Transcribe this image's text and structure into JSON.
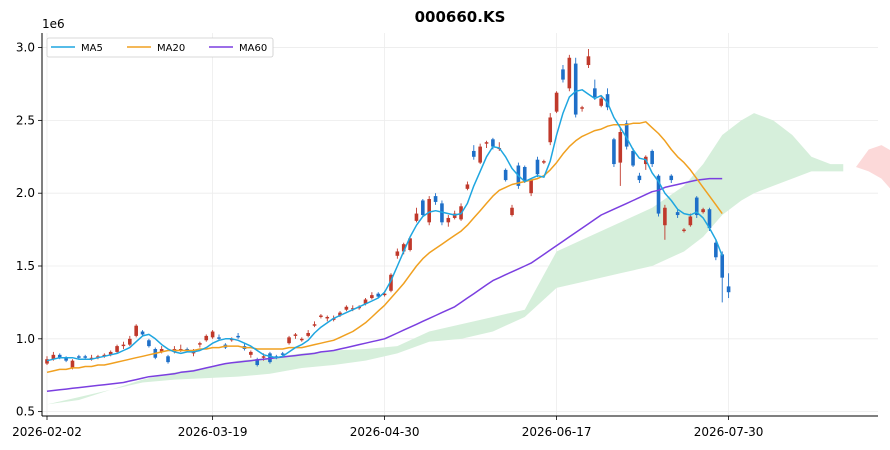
{
  "chart_data": {
    "type": "candlestick",
    "title": "000660.KS",
    "y_scale_label": "1e6",
    "ylim": [
      0.47,
      3.1
    ],
    "x_ticks": [
      "2026-02-02",
      "2026-03-19",
      "2026-04-30",
      "2026-06-17",
      "2026-07-30"
    ],
    "y_ticks": [
      "0.5",
      "1.0",
      "1.5",
      "2.0",
      "2.5",
      "3.0"
    ],
    "legend": [
      {
        "name": "MA5",
        "color": "#1fa6e0"
      },
      {
        "name": "MA20",
        "color": "#f0a020"
      },
      {
        "name": "MA60",
        "color": "#7b3fe0"
      }
    ],
    "colors": {
      "up": "#c0392b",
      "down": "#1e6fc8",
      "cloud_bull": "#d6efdb",
      "cloud_bear": "#fcd9d9"
    },
    "candles": [
      {
        "o": 0.83,
        "h": 0.88,
        "l": 0.82,
        "c": 0.86
      },
      {
        "o": 0.86,
        "h": 0.91,
        "l": 0.85,
        "c": 0.89
      },
      {
        "o": 0.89,
        "h": 0.9,
        "l": 0.86,
        "c": 0.87
      },
      {
        "o": 0.87,
        "h": 0.88,
        "l": 0.84,
        "c": 0.85
      },
      {
        "o": 0.8,
        "h": 0.86,
        "l": 0.79,
        "c": 0.85
      },
      {
        "o": 0.88,
        "h": 0.89,
        "l": 0.86,
        "c": 0.87
      },
      {
        "o": 0.88,
        "h": 0.89,
        "l": 0.86,
        "c": 0.87
      },
      {
        "o": 0.86,
        "h": 0.89,
        "l": 0.85,
        "c": 0.87
      },
      {
        "o": 0.87,
        "h": 0.89,
        "l": 0.86,
        "c": 0.88
      },
      {
        "o": 0.88,
        "h": 0.9,
        "l": 0.87,
        "c": 0.89
      },
      {
        "o": 0.89,
        "h": 0.92,
        "l": 0.88,
        "c": 0.91
      },
      {
        "o": 0.91,
        "h": 0.96,
        "l": 0.9,
        "c": 0.95
      },
      {
        "o": 0.95,
        "h": 0.98,
        "l": 0.93,
        "c": 0.96
      },
      {
        "o": 0.96,
        "h": 1.02,
        "l": 0.95,
        "c": 1.0
      },
      {
        "o": 1.02,
        "h": 1.1,
        "l": 1.01,
        "c": 1.09
      },
      {
        "o": 1.05,
        "h": 1.06,
        "l": 1.02,
        "c": 1.03
      },
      {
        "o": 0.99,
        "h": 1.0,
        "l": 0.94,
        "c": 0.95
      },
      {
        "o": 0.93,
        "h": 0.94,
        "l": 0.86,
        "c": 0.87
      },
      {
        "o": 0.91,
        "h": 0.95,
        "l": 0.9,
        "c": 0.93
      },
      {
        "o": 0.88,
        "h": 0.89,
        "l": 0.83,
        "c": 0.84
      },
      {
        "o": 0.91,
        "h": 0.95,
        "l": 0.9,
        "c": 0.93
      },
      {
        "o": 0.92,
        "h": 0.96,
        "l": 0.91,
        "c": 0.93
      },
      {
        "o": 0.93,
        "h": 0.94,
        "l": 0.91,
        "c": 0.92
      },
      {
        "o": 0.9,
        "h": 0.93,
        "l": 0.88,
        "c": 0.91
      },
      {
        "o": 0.96,
        "h": 0.98,
        "l": 0.94,
        "c": 0.97
      },
      {
        "o": 0.99,
        "h": 1.03,
        "l": 0.98,
        "c": 1.02
      },
      {
        "o": 1.01,
        "h": 1.06,
        "l": 1.0,
        "c": 1.05
      },
      {
        "o": 1.01,
        "h": 1.03,
        "l": 0.99,
        "c": 1.0
      },
      {
        "o": 0.96,
        "h": 0.97,
        "l": 0.93,
        "c": 0.94
      },
      {
        "o": 0.99,
        "h": 1.01,
        "l": 0.98,
        "c": 1.0
      },
      {
        "o": 1.02,
        "h": 1.04,
        "l": 1.0,
        "c": 1.01
      },
      {
        "o": 0.95,
        "h": 0.97,
        "l": 0.92,
        "c": 0.93
      },
      {
        "o": 0.89,
        "h": 0.92,
        "l": 0.87,
        "c": 0.91
      },
      {
        "o": 0.86,
        "h": 0.87,
        "l": 0.81,
        "c": 0.82
      },
      {
        "o": 0.87,
        "h": 0.9,
        "l": 0.85,
        "c": 0.88
      },
      {
        "o": 0.9,
        "h": 0.91,
        "l": 0.83,
        "c": 0.84
      },
      {
        "o": 0.88,
        "h": 0.89,
        "l": 0.86,
        "c": 0.87
      },
      {
        "o": 0.9,
        "h": 0.91,
        "l": 0.88,
        "c": 0.89
      },
      {
        "o": 0.97,
        "h": 1.02,
        "l": 0.96,
        "c": 1.01
      },
      {
        "o": 1.02,
        "h": 1.04,
        "l": 1.0,
        "c": 1.03
      },
      {
        "o": 0.99,
        "h": 1.01,
        "l": 0.98,
        "c": 1.0
      },
      {
        "o": 1.02,
        "h": 1.06,
        "l": 1.01,
        "c": 1.04
      },
      {
        "o": 1.09,
        "h": 1.12,
        "l": 1.08,
        "c": 1.1
      },
      {
        "o": 1.15,
        "h": 1.17,
        "l": 1.14,
        "c": 1.16
      },
      {
        "o": 1.14,
        "h": 1.16,
        "l": 1.12,
        "c": 1.15
      },
      {
        "o": 1.13,
        "h": 1.16,
        "l": 1.12,
        "c": 1.14
      },
      {
        "o": 1.16,
        "h": 1.19,
        "l": 1.15,
        "c": 1.18
      },
      {
        "o": 1.2,
        "h": 1.23,
        "l": 1.19,
        "c": 1.22
      },
      {
        "o": 1.21,
        "h": 1.23,
        "l": 1.19,
        "c": 1.21
      },
      {
        "o": 1.21,
        "h": 1.23,
        "l": 1.2,
        "c": 1.22
      },
      {
        "o": 1.24,
        "h": 1.28,
        "l": 1.23,
        "c": 1.27
      },
      {
        "o": 1.28,
        "h": 1.32,
        "l": 1.27,
        "c": 1.3
      },
      {
        "o": 1.31,
        "h": 1.32,
        "l": 1.28,
        "c": 1.29
      },
      {
        "o": 1.3,
        "h": 1.33,
        "l": 1.29,
        "c": 1.31
      },
      {
        "o": 1.33,
        "h": 1.45,
        "l": 1.32,
        "c": 1.44
      },
      {
        "o": 1.57,
        "h": 1.62,
        "l": 1.55,
        "c": 1.6
      },
      {
        "o": 1.6,
        "h": 1.66,
        "l": 1.58,
        "c": 1.65
      },
      {
        "o": 1.61,
        "h": 1.7,
        "l": 1.6,
        "c": 1.69
      },
      {
        "o": 1.81,
        "h": 1.9,
        "l": 1.8,
        "c": 1.86
      },
      {
        "o": 1.95,
        "h": 1.96,
        "l": 1.84,
        "c": 1.85
      },
      {
        "o": 1.8,
        "h": 1.98,
        "l": 1.78,
        "c": 1.96
      },
      {
        "o": 1.98,
        "h": 2.0,
        "l": 1.92,
        "c": 1.94
      },
      {
        "o": 1.93,
        "h": 1.95,
        "l": 1.78,
        "c": 1.8
      },
      {
        "o": 1.8,
        "h": 1.85,
        "l": 1.77,
        "c": 1.83
      },
      {
        "o": 1.83,
        "h": 1.88,
        "l": 1.82,
        "c": 1.86
      },
      {
        "o": 1.82,
        "h": 1.93,
        "l": 1.81,
        "c": 1.91
      },
      {
        "o": 2.03,
        "h": 2.08,
        "l": 2.02,
        "c": 2.06
      },
      {
        "o": 2.29,
        "h": 2.33,
        "l": 2.23,
        "c": 2.25
      },
      {
        "o": 2.21,
        "h": 2.34,
        "l": 2.2,
        "c": 2.32
      },
      {
        "o": 2.34,
        "h": 2.36,
        "l": 2.31,
        "c": 2.35
      },
      {
        "o": 2.37,
        "h": 2.38,
        "l": 2.3,
        "c": 2.32
      },
      {
        "o": 2.31,
        "h": 2.35,
        "l": 2.29,
        "c": 2.31
      },
      {
        "o": 2.16,
        "h": 2.17,
        "l": 2.08,
        "c": 2.09
      },
      {
        "o": 1.85,
        "h": 1.92,
        "l": 1.84,
        "c": 1.9
      },
      {
        "o": 2.19,
        "h": 2.21,
        "l": 2.03,
        "c": 2.05
      },
      {
        "o": 2.18,
        "h": 2.19,
        "l": 2.07,
        "c": 2.08
      },
      {
        "o": 2.0,
        "h": 2.1,
        "l": 1.98,
        "c": 2.09
      },
      {
        "o": 2.23,
        "h": 2.25,
        "l": 2.11,
        "c": 2.13
      },
      {
        "o": 2.21,
        "h": 2.23,
        "l": 2.2,
        "c": 2.22
      },
      {
        "o": 2.35,
        "h": 2.55,
        "l": 2.33,
        "c": 2.52
      },
      {
        "o": 2.56,
        "h": 2.7,
        "l": 2.55,
        "c": 2.69
      },
      {
        "o": 2.85,
        "h": 2.88,
        "l": 2.76,
        "c": 2.78
      },
      {
        "o": 2.72,
        "h": 2.95,
        "l": 2.7,
        "c": 2.93
      },
      {
        "o": 2.89,
        "h": 2.93,
        "l": 2.52,
        "c": 2.54
      },
      {
        "o": 2.58,
        "h": 2.6,
        "l": 2.56,
        "c": 2.59
      },
      {
        "o": 2.88,
        "h": 2.99,
        "l": 2.86,
        "c": 2.94
      },
      {
        "o": 2.72,
        "h": 2.78,
        "l": 2.64,
        "c": 2.66
      },
      {
        "o": 2.6,
        "h": 2.67,
        "l": 2.59,
        "c": 2.65
      },
      {
        "o": 2.68,
        "h": 2.72,
        "l": 2.57,
        "c": 2.59
      },
      {
        "o": 2.37,
        "h": 2.38,
        "l": 2.18,
        "c": 2.2
      },
      {
        "o": 2.21,
        "h": 2.45,
        "l": 2.05,
        "c": 2.42
      },
      {
        "o": 2.48,
        "h": 2.5,
        "l": 2.3,
        "c": 2.32
      },
      {
        "o": 2.29,
        "h": 2.31,
        "l": 2.18,
        "c": 2.19
      },
      {
        "o": 2.12,
        "h": 2.14,
        "l": 2.07,
        "c": 2.09
      },
      {
        "o": 2.2,
        "h": 2.26,
        "l": 2.16,
        "c": 2.25
      },
      {
        "o": 2.29,
        "h": 2.3,
        "l": 2.18,
        "c": 2.2
      },
      {
        "o": 2.12,
        "h": 2.13,
        "l": 1.84,
        "c": 1.86
      },
      {
        "o": 1.78,
        "h": 1.92,
        "l": 1.68,
        "c": 1.9
      },
      {
        "o": 2.12,
        "h": 2.13,
        "l": 2.07,
        "c": 2.09
      },
      {
        "o": 1.87,
        "h": 1.89,
        "l": 1.83,
        "c": 1.85
      },
      {
        "o": 1.74,
        "h": 1.76,
        "l": 1.73,
        "c": 1.75
      },
      {
        "o": 1.78,
        "h": 1.86,
        "l": 1.77,
        "c": 1.84
      },
      {
        "o": 1.97,
        "h": 1.98,
        "l": 1.83,
        "c": 1.85
      },
      {
        "o": 1.87,
        "h": 1.9,
        "l": 1.86,
        "c": 1.89
      },
      {
        "o": 1.89,
        "h": 1.9,
        "l": 1.74,
        "c": 1.76
      },
      {
        "o": 1.66,
        "h": 1.68,
        "l": 1.54,
        "c": 1.56
      },
      {
        "o": 1.58,
        "h": 1.6,
        "l": 1.25,
        "c": 1.42
      },
      {
        "o": 1.36,
        "h": 1.45,
        "l": 1.28,
        "c": 1.32
      }
    ],
    "ma5": [
      0.85,
      0.86,
      0.87,
      0.87,
      0.87,
      0.86,
      0.86,
      0.86,
      0.87,
      0.88,
      0.89,
      0.9,
      0.92,
      0.94,
      0.98,
      1.02,
      1.03,
      1.0,
      0.96,
      0.93,
      0.91,
      0.9,
      0.91,
      0.91,
      0.92,
      0.94,
      0.97,
      0.99,
      1.0,
      1.0,
      0.99,
      0.97,
      0.95,
      0.92,
      0.89,
      0.88,
      0.87,
      0.88,
      0.91,
      0.94,
      0.96,
      0.99,
      1.04,
      1.08,
      1.11,
      1.14,
      1.16,
      1.18,
      1.2,
      1.22,
      1.24,
      1.26,
      1.28,
      1.32,
      1.4,
      1.5,
      1.6,
      1.7,
      1.78,
      1.84,
      1.87,
      1.88,
      1.87,
      1.86,
      1.85,
      1.86,
      1.93,
      2.05,
      2.15,
      2.25,
      2.32,
      2.31,
      2.25,
      2.17,
      2.12,
      2.08,
      2.1,
      2.12,
      2.11,
      2.22,
      2.4,
      2.55,
      2.66,
      2.7,
      2.71,
      2.68,
      2.65,
      2.67,
      2.62,
      2.52,
      2.45,
      2.38,
      2.3,
      2.24,
      2.23,
      2.14,
      2.08,
      2.0,
      1.95,
      1.89,
      1.86,
      1.85,
      1.87,
      1.83,
      1.76,
      1.68,
      1.57
    ],
    "ma20": [
      0.77,
      0.78,
      0.79,
      0.79,
      0.8,
      0.8,
      0.81,
      0.81,
      0.82,
      0.82,
      0.83,
      0.84,
      0.85,
      0.86,
      0.87,
      0.88,
      0.89,
      0.9,
      0.91,
      0.92,
      0.92,
      0.92,
      0.92,
      0.92,
      0.93,
      0.93,
      0.94,
      0.94,
      0.95,
      0.95,
      0.95,
      0.94,
      0.94,
      0.93,
      0.93,
      0.93,
      0.93,
      0.93,
      0.94,
      0.94,
      0.94,
      0.95,
      0.96,
      0.97,
      0.98,
      0.99,
      1.01,
      1.03,
      1.05,
      1.08,
      1.11,
      1.15,
      1.19,
      1.23,
      1.28,
      1.33,
      1.38,
      1.44,
      1.5,
      1.55,
      1.59,
      1.62,
      1.65,
      1.68,
      1.71,
      1.74,
      1.78,
      1.83,
      1.88,
      1.93,
      1.98,
      2.02,
      2.04,
      2.06,
      2.07,
      2.08,
      2.09,
      2.1,
      2.12,
      2.16,
      2.21,
      2.27,
      2.32,
      2.36,
      2.39,
      2.41,
      2.43,
      2.44,
      2.46,
      2.47,
      2.47,
      2.47,
      2.48,
      2.48,
      2.49,
      2.45,
      2.41,
      2.36,
      2.3,
      2.25,
      2.21,
      2.16,
      2.1,
      2.04,
      1.98,
      1.92,
      1.86
    ],
    "ma60": [
      0.64,
      0.645,
      0.65,
      0.655,
      0.66,
      0.665,
      0.67,
      0.675,
      0.68,
      0.685,
      0.69,
      0.695,
      0.7,
      0.71,
      0.72,
      0.73,
      0.74,
      0.745,
      0.75,
      0.755,
      0.76,
      0.77,
      0.775,
      0.78,
      0.79,
      0.8,
      0.81,
      0.82,
      0.83,
      0.835,
      0.84,
      0.845,
      0.85,
      0.855,
      0.86,
      0.865,
      0.87,
      0.875,
      0.88,
      0.885,
      0.89,
      0.895,
      0.9,
      0.91,
      0.915,
      0.92,
      0.93,
      0.94,
      0.95,
      0.96,
      0.97,
      0.98,
      0.99,
      1.0,
      1.02,
      1.04,
      1.06,
      1.08,
      1.1,
      1.12,
      1.14,
      1.16,
      1.18,
      1.2,
      1.22,
      1.25,
      1.28,
      1.31,
      1.34,
      1.37,
      1.4,
      1.42,
      1.44,
      1.46,
      1.48,
      1.5,
      1.52,
      1.55,
      1.58,
      1.61,
      1.64,
      1.67,
      1.7,
      1.73,
      1.76,
      1.79,
      1.82,
      1.85,
      1.87,
      1.89,
      1.91,
      1.93,
      1.95,
      1.97,
      1.99,
      2.01,
      2.02,
      2.04,
      2.05,
      2.06,
      2.07,
      2.08,
      2.09,
      2.095,
      2.1,
      2.1,
      2.1
    ],
    "cloud": [
      [
        0,
        0.55,
        0.55
      ],
      [
        5,
        0.58,
        0.6
      ],
      [
        10,
        0.65,
        0.65
      ],
      [
        15,
        0.7,
        0.72
      ],
      [
        20,
        0.72,
        0.77
      ],
      [
        25,
        0.73,
        0.8
      ],
      [
        30,
        0.74,
        0.85
      ],
      [
        35,
        0.76,
        0.87
      ],
      [
        40,
        0.8,
        0.9
      ],
      [
        45,
        0.82,
        0.92
      ],
      [
        50,
        0.85,
        0.93
      ],
      [
        55,
        0.9,
        0.95
      ],
      [
        60,
        1.05,
        0.98
      ],
      [
        65,
        1.1,
        1.0
      ],
      [
        70,
        1.15,
        1.05
      ],
      [
        75,
        1.2,
        1.15
      ],
      [
        80,
        1.35,
        1.6
      ],
      [
        85,
        1.4,
        1.7
      ],
      [
        90,
        1.45,
        1.8
      ],
      [
        95,
        1.5,
        1.9
      ],
      [
        100,
        1.6,
        2.05
      ],
      [
        103,
        1.7,
        2.2
      ],
      [
        106,
        1.85,
        2.4
      ],
      [
        109,
        1.95,
        2.5
      ],
      [
        111,
        2.0,
        2.55
      ],
      [
        114,
        2.05,
        2.5
      ],
      [
        117,
        2.1,
        2.4
      ],
      [
        120,
        2.15,
        2.25
      ],
      [
        123,
        2.15,
        2.2
      ],
      [
        125,
        2.15,
        2.2
      ]
    ],
    "cloud_bear": [
      [
        127,
        2.18,
        2.18
      ],
      [
        129,
        2.15,
        2.3
      ],
      [
        131,
        2.1,
        2.33
      ],
      [
        133,
        2.0,
        2.28
      ],
      [
        135,
        1.95,
        2.15
      ],
      [
        136,
        1.88,
        2.12
      ]
    ]
  }
}
